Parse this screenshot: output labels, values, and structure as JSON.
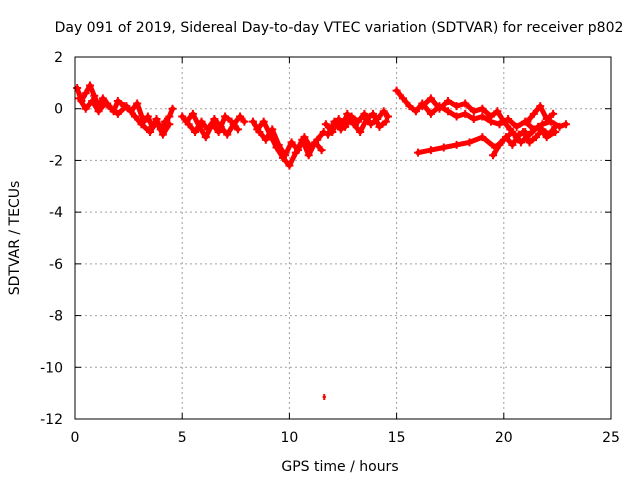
{
  "chart_data": {
    "type": "scatter",
    "title": "Day 091 of 2019, Sidereal Day-to-day VTEC variation (SDTVAR) for receiver p802",
    "xlabel": "GPS time / hours",
    "ylabel": "SDTVAR / TECUs",
    "xlim": [
      0,
      25
    ],
    "ylim": [
      -12,
      2
    ],
    "x_ticks": [
      "0",
      "5",
      "10",
      "15",
      "20",
      "25"
    ],
    "y_ticks": [
      "2",
      "0",
      "-2",
      "-4",
      "-6",
      "-8",
      "-10",
      "-12"
    ],
    "grid": true,
    "series": [
      {
        "name": "SDTVAR",
        "color": "#ff0000",
        "segments": [
          {
            "x": [
              0.1,
              0.3,
              0.5,
              0.7,
              0.9,
              1.1,
              1.3,
              1.5,
              1.8,
              2.0,
              2.3,
              2.6,
              2.9,
              3.2,
              3.4,
              3.6,
              3.8,
              4.0,
              4.2,
              4.4,
              4.55
            ],
            "y": [
              0.8,
              0.3,
              0.6,
              0.9,
              0.5,
              0.1,
              0.4,
              0.2,
              -0.1,
              0.3,
              0.1,
              -0.1,
              0.2,
              -0.5,
              -0.3,
              -0.7,
              -0.4,
              -0.8,
              -0.5,
              -0.3,
              0.0
            ]
          },
          {
            "x": [
              0.2,
              0.5,
              0.8,
              1.1,
              1.4,
              1.7,
              2.0,
              2.4,
              2.8,
              3.1,
              3.5,
              3.8,
              4.1,
              4.4
            ],
            "y": [
              0.4,
              0.0,
              0.3,
              -0.1,
              0.2,
              0.0,
              -0.2,
              0.1,
              -0.3,
              -0.6,
              -0.9,
              -0.5,
              -1.0,
              -0.6
            ]
          },
          {
            "x": [
              5.0,
              5.3,
              5.6,
              5.9,
              6.2,
              6.5,
              6.8,
              7.1,
              7.4,
              7.7,
              7.9
            ],
            "y": [
              -0.3,
              -0.6,
              -0.9,
              -0.5,
              -0.8,
              -0.4,
              -0.7,
              -1.0,
              -0.6,
              -0.3,
              -0.5
            ]
          },
          {
            "x": [
              5.2,
              5.5,
              5.8,
              6.1,
              6.4,
              6.7,
              7.0,
              7.3,
              7.6
            ],
            "y": [
              -0.5,
              -0.2,
              -0.7,
              -1.1,
              -0.6,
              -0.9,
              -0.3,
              -0.5,
              -0.8
            ]
          },
          {
            "x": [
              8.3,
              8.6,
              8.9,
              9.2,
              9.5,
              9.8,
              10.1,
              10.4,
              10.7,
              11.0,
              11.3,
              11.6
            ],
            "y": [
              -0.5,
              -0.9,
              -1.2,
              -0.8,
              -1.4,
              -1.8,
              -1.3,
              -1.6,
              -1.1,
              -1.5,
              -1.2,
              -0.9
            ]
          },
          {
            "x": [
              8.5,
              8.8,
              9.1,
              9.4,
              9.7,
              10.0,
              10.3,
              10.6,
              10.9,
              11.2,
              11.5
            ],
            "y": [
              -0.8,
              -0.5,
              -1.0,
              -1.5,
              -1.9,
              -2.2,
              -1.7,
              -1.2,
              -1.8,
              -1.3,
              -1.6
            ]
          },
          {
            "x": [
              11.7,
              12.0,
              12.3,
              12.6,
              12.9,
              13.2,
              13.5,
              13.8,
              14.1,
              14.4,
              14.6
            ],
            "y": [
              -0.6,
              -0.9,
              -0.4,
              -0.7,
              -0.3,
              -0.5,
              -0.2,
              -0.6,
              -0.4,
              -0.1,
              -0.3
            ]
          },
          {
            "x": [
              11.8,
              12.1,
              12.4,
              12.7,
              13.0,
              13.3,
              13.6,
              13.9,
              14.2,
              14.5
            ],
            "y": [
              -1.0,
              -0.5,
              -0.8,
              -0.2,
              -0.6,
              -0.9,
              -0.4,
              -0.2,
              -0.7,
              -0.5
            ]
          },
          {
            "x": [
              15.0,
              15.3,
              15.6,
              15.9,
              16.2,
              16.6,
              17.0,
              17.4,
              17.8,
              18.2,
              18.6,
              19.0,
              19.4,
              19.8,
              20.2,
              20.6,
              21.0,
              21.4,
              21.8,
              22.2,
              22.6,
              22.9
            ],
            "y": [
              0.7,
              0.4,
              0.1,
              -0.1,
              0.2,
              -0.2,
              0.1,
              -0.1,
              -0.3,
              -0.2,
              -0.4,
              -0.3,
              -0.5,
              -0.6,
              -0.4,
              -0.7,
              -0.5,
              -0.8,
              -0.6,
              -0.5,
              -0.7,
              -0.6
            ]
          },
          {
            "x": [
              16.2,
              16.6,
              17.0,
              17.4,
              17.8,
              18.2,
              18.6,
              19.0,
              19.4,
              19.7,
              20.0,
              20.3,
              20.6,
              20.9,
              21.2,
              21.5,
              21.8,
              22.1,
              22.4
            ],
            "y": [
              0.1,
              0.4,
              0.0,
              0.3,
              0.1,
              0.2,
              -0.1,
              0.0,
              -0.3,
              -0.1,
              -0.5,
              -0.8,
              -1.1,
              -0.9,
              -1.3,
              -1.1,
              -0.8,
              -1.0,
              -0.7
            ]
          },
          {
            "x": [
              16.0,
              16.6,
              17.2,
              17.8,
              18.4,
              19.0,
              19.6,
              20.0,
              20.4,
              20.8,
              21.2,
              21.6,
              22.0,
              22.4
            ],
            "y": [
              -1.7,
              -1.6,
              -1.5,
              -1.4,
              -1.3,
              -1.1,
              -1.5,
              -1.2,
              -0.9,
              -1.3,
              -1.0,
              -0.7,
              -1.1,
              -0.9
            ]
          },
          {
            "x": [
              19.5,
              19.8,
              20.1,
              20.4,
              20.7,
              21.0
            ],
            "y": [
              -1.8,
              -1.4,
              -1.1,
              -1.4,
              -1.0,
              -0.9
            ]
          },
          {
            "x": [
              21.1,
              21.4,
              21.7,
              22.0,
              22.3
            ],
            "y": [
              -0.5,
              -0.2,
              0.1,
              -0.4,
              -0.2
            ]
          },
          {
            "x": [
              11.55,
              11.7
            ],
            "y": [
              -11.15,
              -11.15
            ]
          }
        ]
      }
    ]
  }
}
